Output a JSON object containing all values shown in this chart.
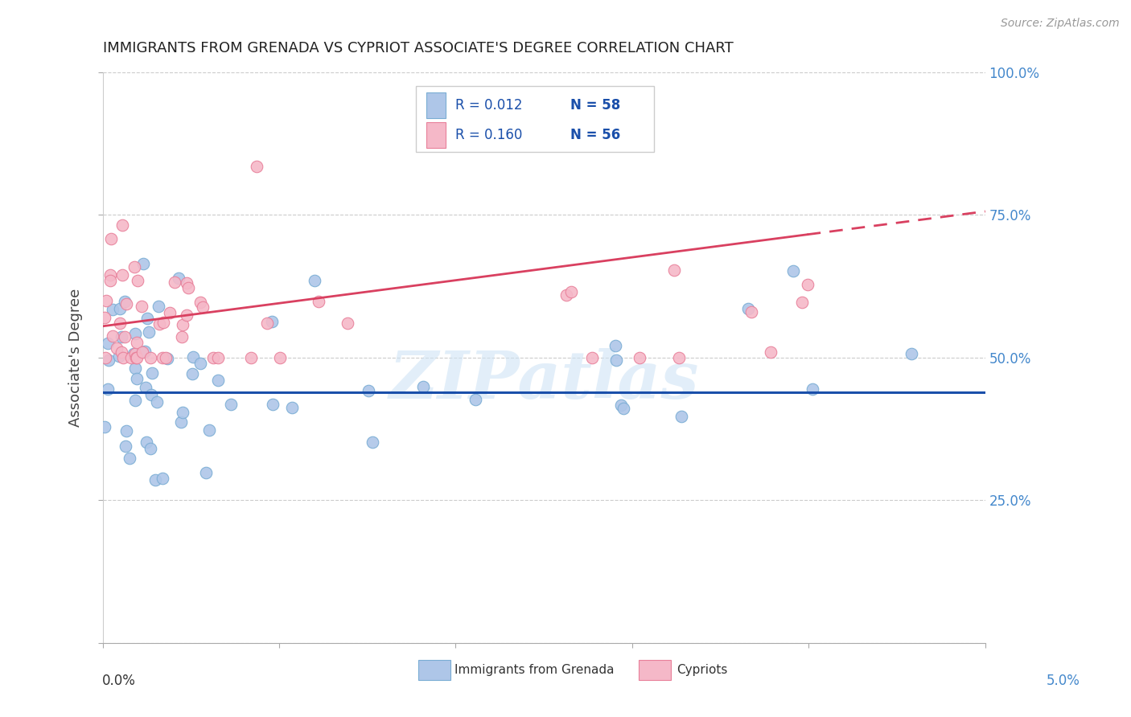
{
  "title": "IMMIGRANTS FROM GRENADA VS CYPRIOT ASSOCIATE'S DEGREE CORRELATION CHART",
  "source": "Source: ZipAtlas.com",
  "ylabel": "Associate's Degree",
  "ytick_labels": [
    "",
    "25.0%",
    "50.0%",
    "75.0%",
    "100.0%"
  ],
  "ytick_vals": [
    0.0,
    0.25,
    0.5,
    0.75,
    1.0
  ],
  "legend1_r": "R = 0.012",
  "legend1_n": "N = 58",
  "legend2_r": "R = 0.160",
  "legend2_n": "N = 56",
  "series1_color": "#aec6e8",
  "series1_edge": "#7aadd4",
  "series2_color": "#f5b8c8",
  "series2_edge": "#e8809a",
  "line1_color": "#1a4faa",
  "line2_color": "#d94060",
  "background_color": "#ffffff",
  "watermark": "ZIPatlas",
  "title_fontsize": 13,
  "ytick_color": "#4488cc",
  "xtick_color": "#333333",
  "xtick_right_color": "#4488cc"
}
